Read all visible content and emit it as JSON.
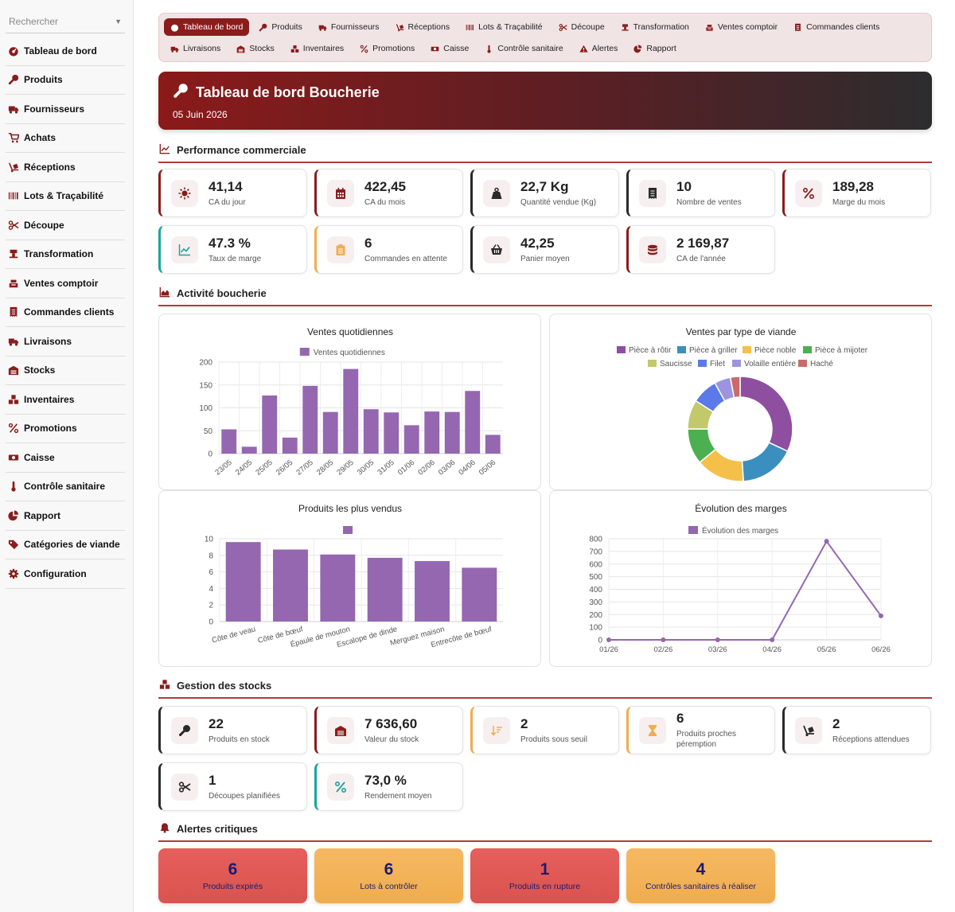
{
  "sidebar": {
    "search_placeholder": "Rechercher",
    "items": [
      {
        "label": "Tableau de bord",
        "icon": "dashboard-icon"
      },
      {
        "label": "Produits",
        "icon": "drumstick-icon"
      },
      {
        "label": "Fournisseurs",
        "icon": "truck-icon"
      },
      {
        "label": "Achats",
        "icon": "cart-icon"
      },
      {
        "label": "Réceptions",
        "icon": "dolly-icon"
      },
      {
        "label": "Lots & Traçabilité",
        "icon": "barcode-icon"
      },
      {
        "label": "Découpe",
        "icon": "scissors-icon"
      },
      {
        "label": "Transformation",
        "icon": "grinder-icon"
      },
      {
        "label": "Ventes comptoir",
        "icon": "cash-register-icon"
      },
      {
        "label": "Commandes clients",
        "icon": "receipt-icon"
      },
      {
        "label": "Livraisons",
        "icon": "delivery-icon"
      },
      {
        "label": "Stocks",
        "icon": "warehouse-icon"
      },
      {
        "label": "Inventaires",
        "icon": "boxes-icon"
      },
      {
        "label": "Promotions",
        "icon": "percent-icon"
      },
      {
        "label": "Caisse",
        "icon": "money-icon"
      },
      {
        "label": "Contrôle sanitaire",
        "icon": "thermometer-icon"
      },
      {
        "label": "Rapport",
        "icon": "chart-pie-icon"
      },
      {
        "label": "Catégories de viande",
        "icon": "tags-icon"
      },
      {
        "label": "Configuration",
        "icon": "gear-icon"
      }
    ]
  },
  "topnav": [
    {
      "label": "Tableau de bord",
      "icon": "dashboard-icon",
      "active": true
    },
    {
      "label": "Produits",
      "icon": "drumstick-icon"
    },
    {
      "label": "Fournisseurs",
      "icon": "truck-icon"
    },
    {
      "label": "Réceptions",
      "icon": "dolly-icon"
    },
    {
      "label": "Lots & Traçabilité",
      "icon": "barcode-icon"
    },
    {
      "label": "Découpe",
      "icon": "scissors-icon"
    },
    {
      "label": "Transformation",
      "icon": "grinder-icon"
    },
    {
      "label": "Ventes comptoir",
      "icon": "cash-register-icon"
    },
    {
      "label": "Commandes clients",
      "icon": "receipt-icon"
    },
    {
      "label": "Livraisons",
      "icon": "delivery-icon"
    },
    {
      "label": "Stocks",
      "icon": "warehouse-icon"
    },
    {
      "label": "Inventaires",
      "icon": "boxes-icon"
    },
    {
      "label": "Promotions",
      "icon": "percent-icon"
    },
    {
      "label": "Caisse",
      "icon": "money-icon"
    },
    {
      "label": "Contrôle sanitaire",
      "icon": "thermometer-icon"
    },
    {
      "label": "Alertes",
      "icon": "warning-icon"
    },
    {
      "label": "Rapport",
      "icon": "chart-pie-icon"
    }
  ],
  "hero": {
    "title": "Tableau de bord Boucherie",
    "date": "05 Juin 2026"
  },
  "sections": {
    "performance": "Performance commerciale",
    "activity": "Activité boucherie",
    "stock": "Gestion des stocks",
    "alerts": "Alertes critiques"
  },
  "kpi": [
    {
      "value": "41,14",
      "label": "CA du jour",
      "icon": "sun-icon",
      "accent": "red"
    },
    {
      "value": "422,45",
      "label": "CA du mois",
      "icon": "calendar-icon",
      "accent": "red"
    },
    {
      "value": "22,7 Kg",
      "label": "Quantité vendue (Kg)",
      "icon": "weight-icon",
      "accent": "dark"
    },
    {
      "value": "10",
      "label": "Nombre de ventes",
      "icon": "receipt-icon",
      "accent": "dark"
    },
    {
      "value": "189,28",
      "label": "Marge du mois",
      "icon": "percent-icon",
      "accent": "red"
    },
    {
      "value": "47.3 %",
      "label": "Taux de marge",
      "icon": "trend-icon",
      "accent": "teal"
    },
    {
      "value": "6",
      "label": "Commandes en attente",
      "icon": "clipboard-icon",
      "accent": "amber"
    },
    {
      "value": "42,25",
      "label": "Panier moyen",
      "icon": "basket-icon",
      "accent": "dark"
    },
    {
      "value": "2 169,87",
      "label": "CA de l'année",
      "icon": "coins-icon",
      "accent": "red"
    }
  ],
  "stock": [
    {
      "value": "22",
      "label": "Produits en stock",
      "icon": "drumstick-icon",
      "accent": "dark"
    },
    {
      "value": "7 636,60",
      "label": "Valeur du stock",
      "icon": "warehouse-icon",
      "accent": "red"
    },
    {
      "value": "2",
      "label": "Produits sous seuil",
      "icon": "sort-down-icon",
      "accent": "amber"
    },
    {
      "value": "6",
      "label": "Produits proches péremption",
      "icon": "hourglass-icon",
      "accent": "amber"
    },
    {
      "value": "2",
      "label": "Réceptions attendues",
      "icon": "dolly-icon",
      "accent": "dark"
    },
    {
      "value": "1",
      "label": "Découpes planifiées",
      "icon": "scissors-icon",
      "accent": "dark"
    },
    {
      "value": "73,0 %",
      "label": "Rendement moyen",
      "icon": "percent-icon",
      "accent": "teal"
    }
  ],
  "alerts": [
    {
      "value": "6",
      "label": "Produits expirés",
      "style": "red"
    },
    {
      "value": "6",
      "label": "Lots à contrôler",
      "style": "amber"
    },
    {
      "value": "1",
      "label": "Produits en rupture",
      "style": "red"
    },
    {
      "value": "4",
      "label": "Contrôles sanitaires à réaliser",
      "style": "amber"
    }
  ],
  "colors": {
    "primary": "#8b1c1c",
    "bar": "#9467b0",
    "teal": "#17a49c",
    "amber": "#f0ad4e",
    "red_alert": "#d9534f"
  },
  "chart_data": [
    {
      "type": "bar",
      "title": "Ventes quotidiennes",
      "series": [
        {
          "name": "Ventes quotidiennes",
          "values": [
            53,
            15,
            127,
            35,
            148,
            91,
            185,
            97,
            90,
            62,
            92,
            91,
            137,
            41
          ]
        }
      ],
      "categories": [
        "23/05",
        "24/05",
        "25/05",
        "26/05",
        "27/05",
        "28/05",
        "29/05",
        "30/05",
        "31/05",
        "01/06",
        "02/06",
        "03/06",
        "04/06",
        "05/06"
      ],
      "ylim": [
        0,
        200
      ],
      "yticks": [
        0,
        50,
        100,
        150,
        200
      ],
      "legend": "top",
      "grid": true
    },
    {
      "type": "pie",
      "title": "Ventes par type de viande",
      "labels": [
        "Pièce à rôtir",
        "Pièce à griller",
        "Pièce noble",
        "Pièce à mijoter",
        "Saucisse",
        "Filet",
        "Volaille entière",
        "Haché"
      ],
      "values": [
        32,
        17,
        15,
        11,
        9,
        8,
        5,
        3
      ],
      "colors": [
        "#8e4fa0",
        "#3a8fbf",
        "#f5c04a",
        "#4caf50",
        "#c3c86a",
        "#5b79e8",
        "#9c94e0",
        "#c96b6b"
      ],
      "legend": "top"
    },
    {
      "type": "bar",
      "title": "Produits les plus vendus",
      "series": [
        {
          "values": [
            9.6,
            8.7,
            8.1,
            7.7,
            7.3,
            6.5
          ]
        }
      ],
      "categories": [
        "Côte de veau",
        "Côte de bœuf",
        "Épaule de mouton",
        "Escalope de dinde",
        "Merguez maison",
        "Entrecôte de bœuf"
      ],
      "ylim": [
        0,
        10
      ],
      "yticks": [
        0,
        2,
        4,
        6,
        8,
        10
      ],
      "legend": "top",
      "grid": true
    },
    {
      "type": "line",
      "title": "Évolution des marges",
      "series": [
        {
          "name": "Évolution des marges",
          "values": [
            0,
            0,
            0,
            0,
            780,
            190
          ]
        }
      ],
      "categories": [
        "01/26",
        "02/26",
        "03/26",
        "04/26",
        "05/26",
        "06/26"
      ],
      "ylim": [
        0,
        800
      ],
      "yticks": [
        0,
        100,
        200,
        300,
        400,
        500,
        600,
        700,
        800
      ],
      "legend": "top",
      "grid": true
    }
  ]
}
